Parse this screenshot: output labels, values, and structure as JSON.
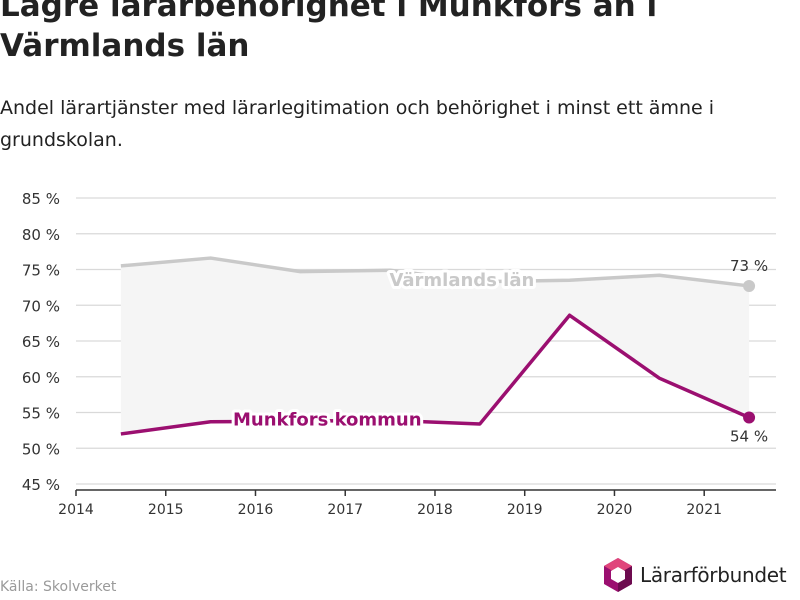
{
  "title": "Lägre lärarbehörighet i Munkfors än i Värmlands län",
  "subtitle": "Andel lärartjänster med lärarlegitimation och behörighet i minst ett ämne i grundskolan.",
  "source": "Källa: Skolverket",
  "brand": {
    "name": "Lärarförbundet",
    "logo_icon": "lararforbundet-hexagon-logo"
  },
  "colors": {
    "county": "#c9c9c9",
    "municipality": "#9b0f70",
    "band": "#f5f5f5",
    "grid": "#d9d9d9",
    "axis": "#333333"
  },
  "chart_data": {
    "type": "line",
    "title": "Lägre lärarbehörighet i Munkfors än i Värmlands län",
    "subtitle": "Andel lärartjänster med lärarlegitimation och behörighet i minst ett ämne i grundskolan.",
    "xlabel": "",
    "ylabel": "",
    "xlim": [
      2014,
      2021.8
    ],
    "ylim": [
      45,
      85
    ],
    "x_ticks": [
      2014,
      2015,
      2016,
      2017,
      2018,
      2019,
      2020,
      2021
    ],
    "y_ticks": [
      45,
      50,
      55,
      60,
      65,
      70,
      75,
      80,
      85
    ],
    "y_tick_suffix": " %",
    "grid": true,
    "x": [
      2014.5,
      2015.5,
      2016.5,
      2017.5,
      2018.5,
      2019.5,
      2020.5,
      2021.5
    ],
    "series": [
      {
        "name": "Värmlands län",
        "values": [
          75.5,
          76.6,
          74.7,
          74.9,
          73.3,
          73.5,
          74.2,
          72.7
        ],
        "end_label": "73 %"
      },
      {
        "name": "Munkfors kommun",
        "values": [
          52.0,
          53.7,
          53.8,
          53.9,
          53.4,
          68.6,
          59.8,
          54.3
        ],
        "end_label": "54 %"
      }
    ]
  }
}
